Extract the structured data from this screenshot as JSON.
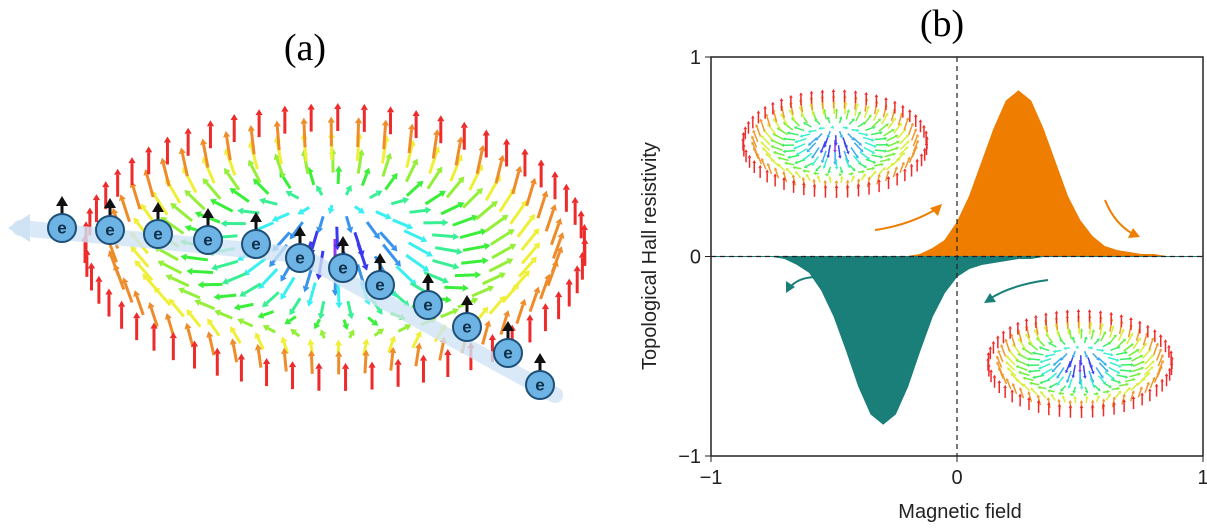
{
  "panel_a": {
    "label": "(a)",
    "electrons": [
      "e",
      "e",
      "e",
      "e",
      "e",
      "e",
      "e",
      "e",
      "e",
      "e",
      "e",
      "e"
    ]
  },
  "chart_data": {
    "type": "area",
    "title": "(b)",
    "x_label": "Magnetic field",
    "y_label": "Topological Hall resistivity",
    "x": [
      -1,
      -0.95,
      -0.9,
      -0.85,
      -0.8,
      -0.75,
      -0.7,
      -0.65,
      -0.6,
      -0.55,
      -0.5,
      -0.45,
      -0.4,
      -0.35,
      -0.3,
      -0.25,
      -0.2,
      -0.15,
      -0.1,
      -0.05,
      0,
      0.05,
      0.1,
      0.15,
      0.2,
      0.25,
      0.3,
      0.35,
      0.4,
      0.45,
      0.5,
      0.55,
      0.6,
      0.65,
      0.7,
      0.75,
      0.8,
      0.85,
      0.9,
      0.95,
      1
    ],
    "series": [
      {
        "color": "#ef7d00",
        "values": [
          0,
          0,
          0,
          0,
          0,
          0,
          0,
          0,
          0,
          0,
          0,
          0,
          0,
          0,
          0,
          0,
          0,
          0.01,
          0.04,
          0.08,
          0.17,
          0.3,
          0.47,
          0.64,
          0.78,
          0.83,
          0.78,
          0.64,
          0.47,
          0.3,
          0.18,
          0.1,
          0.05,
          0.03,
          0.02,
          0.01,
          0.01,
          0,
          0,
          0,
          0
        ]
      },
      {
        "color": "#1b7f79",
        "values": [
          0,
          0,
          0,
          0,
          0,
          0,
          -0.01,
          -0.04,
          -0.08,
          -0.17,
          -0.3,
          -0.47,
          -0.65,
          -0.79,
          -0.84,
          -0.79,
          -0.65,
          -0.47,
          -0.3,
          -0.18,
          -0.1,
          -0.06,
          -0.04,
          -0.03,
          -0.02,
          -0.01,
          -0.01,
          0,
          0,
          0,
          0,
          0,
          0,
          0,
          0,
          0,
          0,
          0,
          0,
          0,
          0
        ]
      }
    ],
    "xlim": [
      -1,
      1
    ],
    "ylim": [
      -1,
      1
    ],
    "xticks": [
      {
        "value": -1,
        "label": "−1"
      },
      0,
      1
    ],
    "yticks": [
      {
        "value": -1,
        "label": "−1"
      },
      0,
      1
    ]
  }
}
